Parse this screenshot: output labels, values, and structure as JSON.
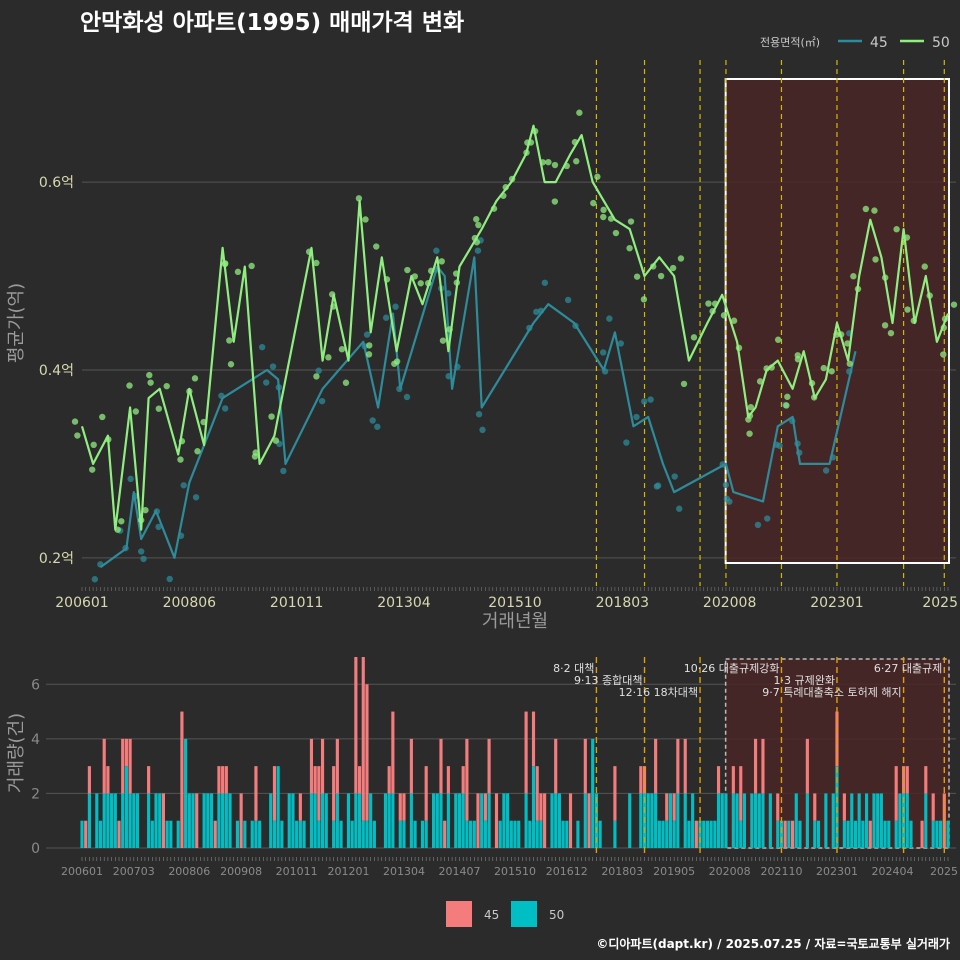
{
  "title": "안막화성 아파트(1995) 매매가격 변화",
  "source": "©디아파트(dapt.kr) / 2025.07.25 / 자료=국토교통부 실거래가",
  "colors": {
    "bg": "#2b2b2b",
    "grid": "#555555",
    "line45": "#2e8b9a",
    "line50": "#90ee80",
    "bar45": "#f47c7c",
    "bar50": "#00bfc4",
    "event": "#d4b800",
    "event2": "#e0a000",
    "highlight": "#4a2626"
  },
  "top_legend": {
    "title": "전용면적(㎡)",
    "items": [
      "45",
      "50"
    ]
  },
  "bottom_legend": {
    "items": [
      "45",
      "50"
    ]
  },
  "chart_data": [
    {
      "type": "line",
      "xlabel": "거래년월",
      "ylabel": "평균가(억)",
      "x_ticks": [
        "200601",
        "200806",
        "201011",
        "201304",
        "201510",
        "201803",
        "202008",
        "202301",
        "2025"
      ],
      "y_ticks": [
        "0.2억",
        "0.4억",
        "0.6억"
      ],
      "ylim": [
        0.17,
        0.73
      ],
      "xlim": [
        "2006-01",
        "2025-07"
      ],
      "grid": true,
      "legend": "top-right",
      "series": [
        {
          "name": "45",
          "points": [
            [
              "2006-06",
              0.19
            ],
            [
              "2007-01",
              0.21
            ],
            [
              "2007-03",
              0.27
            ],
            [
              "2007-05",
              0.22
            ],
            [
              "2007-09",
              0.25
            ],
            [
              "2008-02",
              0.2
            ],
            [
              "2008-06",
              0.28
            ],
            [
              "2009-03",
              0.37
            ],
            [
              "2010-03",
              0.4
            ],
            [
              "2010-06",
              0.39
            ],
            [
              "2010-08",
              0.3
            ],
            [
              "2011-06",
              0.38
            ],
            [
              "2012-05",
              0.43
            ],
            [
              "2012-09",
              0.36
            ],
            [
              "2013-01",
              0.46
            ],
            [
              "2013-03",
              0.38
            ],
            [
              "2014-01",
              0.51
            ],
            [
              "2014-03",
              0.5
            ],
            [
              "2014-05",
              0.38
            ],
            [
              "2014-11",
              0.52
            ],
            [
              "2015-01",
              0.36
            ],
            [
              "2016-03",
              0.45
            ],
            [
              "2016-07",
              0.47
            ],
            [
              "2017-02",
              0.45
            ],
            [
              "2017-10",
              0.4
            ],
            [
              "2018-01",
              0.44
            ],
            [
              "2018-06",
              0.34
            ],
            [
              "2018-10",
              0.35
            ],
            [
              "2019-02",
              0.3
            ],
            [
              "2019-05",
              0.27
            ],
            [
              "2020-07",
              0.3
            ],
            [
              "2020-09",
              0.27
            ],
            [
              "2021-05",
              0.26
            ],
            [
              "2021-09",
              0.34
            ],
            [
              "2022-01",
              0.35
            ],
            [
              "2022-03",
              0.3
            ],
            [
              "2022-11",
              0.3
            ],
            [
              "2023-06",
              0.42
            ]
          ]
        },
        {
          "name": "50",
          "points": [
            [
              "2006-01",
              0.34
            ],
            [
              "2006-04",
              0.3
            ],
            [
              "2006-08",
              0.33
            ],
            [
              "2006-10",
              0.23
            ],
            [
              "2007-02",
              0.36
            ],
            [
              "2007-05",
              0.23
            ],
            [
              "2007-07",
              0.37
            ],
            [
              "2007-10",
              0.38
            ],
            [
              "2008-03",
              0.31
            ],
            [
              "2008-06",
              0.38
            ],
            [
              "2008-10",
              0.32
            ],
            [
              "2009-03",
              0.53
            ],
            [
              "2009-06",
              0.43
            ],
            [
              "2009-09",
              0.51
            ],
            [
              "2010-01",
              0.3
            ],
            [
              "2010-05",
              0.33
            ],
            [
              "2011-03",
              0.53
            ],
            [
              "2011-06",
              0.41
            ],
            [
              "2011-09",
              0.48
            ],
            [
              "2012-01",
              0.41
            ],
            [
              "2012-04",
              0.58
            ],
            [
              "2012-07",
              0.44
            ],
            [
              "2012-10",
              0.52
            ],
            [
              "2013-02",
              0.42
            ],
            [
              "2013-06",
              0.5
            ],
            [
              "2013-09",
              0.47
            ],
            [
              "2014-01",
              0.52
            ],
            [
              "2014-04",
              0.42
            ],
            [
              "2014-07",
              0.51
            ],
            [
              "2014-10",
              0.53
            ],
            [
              "2015-01",
              0.55
            ],
            [
              "2015-05",
              0.58
            ],
            [
              "2015-09",
              0.6
            ],
            [
              "2016-01",
              0.63
            ],
            [
              "2016-03",
              0.66
            ],
            [
              "2016-06",
              0.6
            ],
            [
              "2016-09",
              0.6
            ],
            [
              "2017-01",
              0.63
            ],
            [
              "2017-04",
              0.65
            ],
            [
              "2017-07",
              0.6
            ],
            [
              "2017-10",
              0.58
            ],
            [
              "2018-01",
              0.56
            ],
            [
              "2018-05",
              0.55
            ],
            [
              "2018-09",
              0.5
            ],
            [
              "2019-01",
              0.52
            ],
            [
              "2019-05",
              0.5
            ],
            [
              "2019-09",
              0.41
            ],
            [
              "2020-02",
              0.45
            ],
            [
              "2020-06",
              0.48
            ],
            [
              "2020-10",
              0.43
            ],
            [
              "2021-01",
              0.35
            ],
            [
              "2021-03",
              0.36
            ],
            [
              "2021-06",
              0.4
            ],
            [
              "2021-09",
              0.41
            ],
            [
              "2022-01",
              0.38
            ],
            [
              "2022-04",
              0.42
            ],
            [
              "2022-07",
              0.37
            ],
            [
              "2022-10",
              0.39
            ],
            [
              "2023-01",
              0.45
            ],
            [
              "2023-04",
              0.41
            ],
            [
              "2023-07",
              0.5
            ],
            [
              "2023-10",
              0.56
            ],
            [
              "2024-01",
              0.52
            ],
            [
              "2024-04",
              0.45
            ],
            [
              "2024-07",
              0.55
            ],
            [
              "2024-10",
              0.45
            ],
            [
              "2025-01",
              0.5
            ],
            [
              "2025-04",
              0.43
            ],
            [
              "2025-07",
              0.46
            ]
          ]
        }
      ],
      "event_dates": [
        "2017-08",
        "2018-09",
        "2019-12",
        "2020-07",
        "2021-10",
        "2023-01",
        "2024-07",
        "2025-06"
      ],
      "highlight_range": [
        "2020-08",
        "2025-07"
      ]
    },
    {
      "type": "bar",
      "ylabel": "거래량(건)",
      "x_ticks": [
        "200601",
        "200703",
        "200806",
        "200908",
        "201011",
        "201201",
        "201304",
        "201407",
        "201510",
        "201612",
        "201803",
        "201905",
        "202008",
        "202110",
        "202301",
        "202404",
        "2025"
      ],
      "y_ticks": [
        "0",
        "2",
        "4",
        "6"
      ],
      "ylim": [
        0,
        7
      ],
      "legend": "bottom",
      "series": [
        {
          "name": "45",
          "values_sample": {
            "2007-01": 4,
            "2007-02": 4,
            "2008-04": 5,
            "2009-03": 3,
            "2010-06": 3,
            "2011-10": 4,
            "2012-03": 7,
            "2012-05": 7,
            "2012-06": 6,
            "2013-01": 5,
            "2013-06": 4,
            "2014-02": 4,
            "2014-09": 4,
            "2015-03": 4,
            "2016-01": 5,
            "2016-03": 5,
            "2017-05": 4,
            "2019-06": 4,
            "2021-03": 4,
            "2023-01": 5,
            "2024-08": 3
          }
        },
        {
          "name": "50",
          "values_sample": {
            "2006-01": 1,
            "2007-01": 3,
            "2008-05": 4,
            "2009-03": 2,
            "2010-06": 3,
            "2011-10": 2,
            "2012-03": 2,
            "2013-01": 2,
            "2014-02": 2,
            "2015-03": 2,
            "2016-03": 3,
            "2017-07": 4,
            "2019-06": 2,
            "2020-09": 2,
            "2021-03": 2,
            "2023-01": 3,
            "2024-08": 2,
            "2025-03": 1
          }
        }
      ],
      "events": [
        {
          "date": "2017-08",
          "label": "8·2 대책"
        },
        {
          "date": "2018-09",
          "label": "9·13 종합대책"
        },
        {
          "date": "2019-12",
          "label": "12·16 18차대책"
        },
        {
          "date": "2021-10",
          "label": "10·26 대출규제강화"
        },
        {
          "date": "2023-01",
          "label": "1·3 규제완화"
        },
        {
          "date": "2024-07",
          "label": "9·7 특례대출축소 토허제 해지"
        },
        {
          "date": "2025-06",
          "label": "6·27 대출규제"
        }
      ]
    }
  ]
}
